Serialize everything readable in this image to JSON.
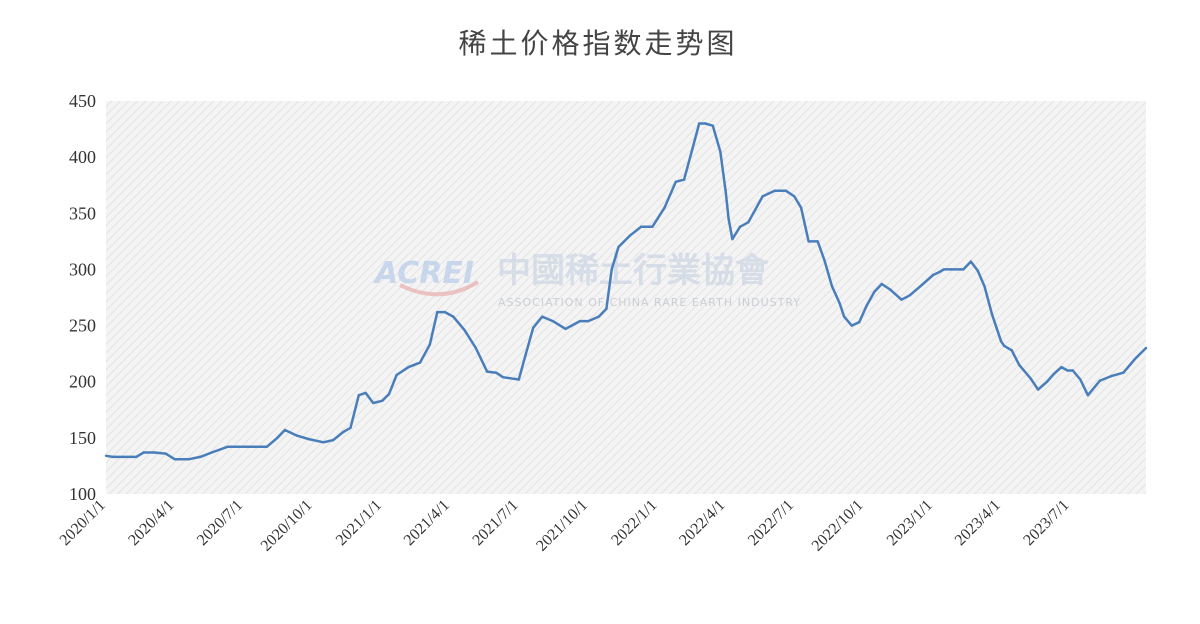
{
  "chart_data": {
    "type": "line",
    "title": "稀土价格指数走势图",
    "xlabel": "",
    "ylabel": "",
    "ylim": [
      100,
      450
    ],
    "yticks": [
      100,
      150,
      200,
      250,
      300,
      350,
      400,
      450
    ],
    "xlim": [
      "2020-01-01",
      "2023-10-10"
    ],
    "xtick_labels": [
      "2020/1/1",
      "2020/4/1",
      "2020/7/1",
      "2020/10/1",
      "2021/1/1",
      "2021/4/1",
      "2021/7/1",
      "2021/10/1",
      "2022/1/1",
      "2022/4/1",
      "2022/7/1",
      "2022/10/1",
      "2023/1/1",
      "2023/4/1",
      "2023/7/1"
    ],
    "xtick_dates": [
      "2020-01-01",
      "2020-04-01",
      "2020-07-01",
      "2020-10-01",
      "2021-01-01",
      "2021-04-01",
      "2021-07-01",
      "2021-10-01",
      "2022-01-01",
      "2022-04-01",
      "2022-07-01",
      "2022-10-01",
      "2023-01-01",
      "2023-04-01",
      "2023-07-01"
    ],
    "grid": false,
    "legend": "none",
    "colors": {
      "line": "#4a7ebb",
      "plot_background": "#f2f2f2"
    },
    "series": [
      {
        "x": [
          "2020-01-01",
          "2020-01-10",
          "2020-01-25",
          "2020-02-10",
          "2020-02-20",
          "2020-03-05",
          "2020-03-20",
          "2020-04-01",
          "2020-04-20",
          "2020-05-05",
          "2020-05-20",
          "2020-06-10",
          "2020-06-25",
          "2020-07-05",
          "2020-07-20",
          "2020-08-01",
          "2020-08-15",
          "2020-08-25",
          "2020-09-10",
          "2020-09-25",
          "2020-10-15",
          "2020-10-28",
          "2020-11-10",
          "2020-11-20",
          "2020-12-01",
          "2020-12-10",
          "2020-12-20",
          "2021-01-01",
          "2021-01-10",
          "2021-01-20",
          "2021-02-05",
          "2021-02-20",
          "2021-03-05",
          "2021-03-15",
          "2021-03-25",
          "2021-04-05",
          "2021-04-20",
          "2021-05-05",
          "2021-05-20",
          "2021-06-01",
          "2021-06-10",
          "2021-06-20",
          "2021-07-01",
          "2021-07-10",
          "2021-07-20",
          "2021-08-01",
          "2021-08-15",
          "2021-09-01",
          "2021-09-20",
          "2021-10-01",
          "2021-10-15",
          "2021-10-25",
          "2021-11-01",
          "2021-11-10",
          "2021-11-25",
          "2021-12-10",
          "2021-12-25",
          "2022-01-10",
          "2022-01-25",
          "2022-02-05",
          "2022-02-15",
          "2022-02-25",
          "2022-03-05",
          "2022-03-15",
          "2022-03-25",
          "2022-04-01",
          "2022-04-05",
          "2022-04-10",
          "2022-04-20",
          "2022-05-01",
          "2022-05-20",
          "2022-06-05",
          "2022-06-20",
          "2022-07-01",
          "2022-07-10",
          "2022-07-20",
          "2022-08-01",
          "2022-08-10",
          "2022-08-20",
          "2022-08-30",
          "2022-09-05",
          "2022-09-15",
          "2022-09-25",
          "2022-10-05",
          "2022-10-15",
          "2022-10-25",
          "2022-11-05",
          "2022-11-20",
          "2022-12-01",
          "2022-12-15",
          "2023-01-01",
          "2023-01-10",
          "2023-01-15",
          "2023-01-25",
          "2023-02-10",
          "2023-02-20",
          "2023-03-01",
          "2023-03-10",
          "2023-03-20",
          "2023-04-01",
          "2023-04-05",
          "2023-04-15",
          "2023-04-25",
          "2023-05-10",
          "2023-05-20",
          "2023-06-01",
          "2023-06-10",
          "2023-06-20",
          "2023-06-28",
          "2023-07-05",
          "2023-07-15",
          "2023-07-25",
          "2023-08-10",
          "2023-08-25",
          "2023-09-10",
          "2023-09-25",
          "2023-10-10"
        ],
        "y": [
          134,
          133,
          133,
          133,
          137,
          137,
          136,
          131,
          131,
          133,
          137,
          142,
          142,
          142,
          142,
          142,
          150,
          157,
          152,
          149,
          146,
          148,
          155,
          159,
          188,
          190,
          181,
          183,
          189,
          206,
          213,
          217,
          233,
          262,
          262,
          258,
          246,
          230,
          209,
          208,
          204,
          203,
          202,
          224,
          248,
          258,
          254,
          247,
          254,
          254,
          258,
          265,
          300,
          320,
          330,
          338,
          338,
          355,
          378,
          380,
          405,
          430,
          430,
          428,
          405,
          370,
          345,
          327,
          338,
          342,
          365,
          370,
          370,
          365,
          355,
          325,
          325,
          308,
          285,
          270,
          258,
          250,
          253,
          268,
          280,
          287,
          282,
          273,
          277,
          285,
          295,
          298,
          300,
          300,
          300,
          307,
          299,
          285,
          260,
          236,
          232,
          228,
          215,
          203,
          193,
          200,
          207,
          213,
          210,
          210,
          202,
          188,
          201,
          205,
          208,
          220,
          230
        ]
      }
    ]
  },
  "watermark": {
    "acronym": "ACREI",
    "name": "中國稀土行業協會",
    "subtitle": "ASSOCIATION OF CHINA RARE EARTH INDUSTRY"
  }
}
